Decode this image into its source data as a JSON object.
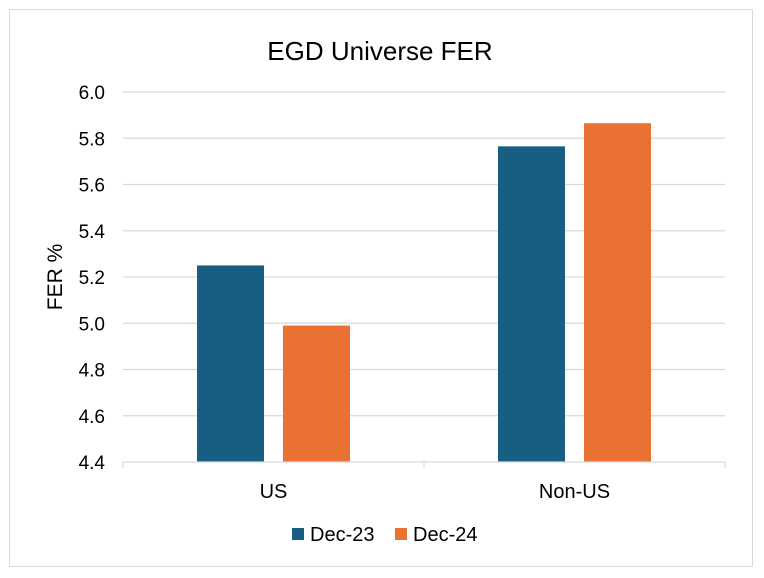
{
  "chart_data": {
    "type": "bar",
    "title": "EGD Universe FER",
    "xlabel": "",
    "ylabel": "FER %",
    "categories": [
      "US",
      "Non-US"
    ],
    "series": [
      {
        "name": "Dec-23",
        "color": "#175e82",
        "values": [
          5.25,
          5.765
        ]
      },
      {
        "name": "Dec-24",
        "color": "#e97132",
        "values": [
          4.99,
          5.865
        ]
      }
    ],
    "ylim": [
      4.4,
      6.0
    ],
    "yticks": [
      "4.4",
      "4.6",
      "4.8",
      "5.0",
      "5.2",
      "5.4",
      "5.6",
      "5.8",
      "6.0"
    ],
    "grid": true,
    "legend_position": "bottom"
  }
}
